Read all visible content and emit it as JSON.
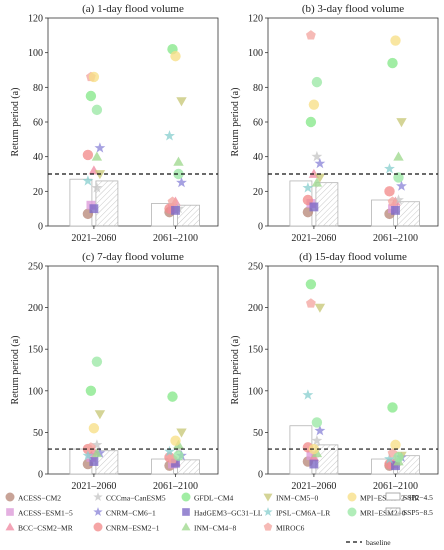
{
  "chart_data": [
    {
      "type": "scatter",
      "title": "(a) 1-day flood volume",
      "ylabel": "Return period (a)",
      "ylim": [
        0,
        120
      ],
      "yticks": [
        0,
        20,
        40,
        60,
        80,
        100,
        120
      ],
      "categories": [
        "2021–2060",
        "2061–2100"
      ],
      "baseline": 30,
      "bars": {
        "SSP2-4.5": [
          27,
          13
        ],
        "SSP5-8.5": [
          26,
          12
        ]
      },
      "series": [
        {
          "name": "ACESS−CM2",
          "values": [
            7,
            8
          ]
        },
        {
          "name": "ACESS−ESM1−5",
          "values": [
            12,
            10
          ]
        },
        {
          "name": "BCC−CSM2−MR",
          "values": [
            32,
            14
          ]
        },
        {
          "name": "CCCma−CanESM5",
          "values": [
            22,
            10
          ]
        },
        {
          "name": "CNRM−CM6−1",
          "values": [
            45,
            25
          ]
        },
        {
          "name": "CNRM−ESM2−1",
          "values": [
            41,
            10
          ]
        },
        {
          "name": "GFDL−CM4",
          "values": [
            75,
            102
          ]
        },
        {
          "name": "HadGEM3−GC31−LL",
          "values": [
            10,
            9
          ]
        },
        {
          "name": "INM−CM4−8",
          "values": [
            40,
            37
          ]
        },
        {
          "name": "INM−CM5−0",
          "values": [
            30,
            72
          ]
        },
        {
          "name": "IPSL−CM6A−LR",
          "values": [
            26,
            52
          ]
        },
        {
          "name": "MIROC6",
          "values": [
            86,
            14
          ]
        },
        {
          "name": "MPI−ESM1−2−HR",
          "values": [
            86,
            98
          ]
        },
        {
          "name": "MRI−ESM2−0",
          "values": [
            67,
            30
          ]
        }
      ]
    },
    {
      "type": "scatter",
      "title": "(b) 3-day flood volume",
      "ylabel": "Return period (a)",
      "ylim": [
        0,
        120
      ],
      "yticks": [
        0,
        20,
        40,
        60,
        80,
        100,
        120
      ],
      "categories": [
        "2021–2060",
        "2061–2100"
      ],
      "baseline": 30,
      "bars": {
        "SSP2-4.5": [
          26,
          15
        ],
        "SSP5-8.5": [
          25,
          14
        ]
      },
      "series": [
        {
          "name": "ACESS−CM2",
          "values": [
            8,
            7
          ]
        },
        {
          "name": "ACESS−ESM1−5",
          "values": [
            13,
            10
          ]
        },
        {
          "name": "BCC−CSM2−MR",
          "values": [
            30,
            14
          ]
        },
        {
          "name": "CCCma−CanESM5",
          "values": [
            40,
            15
          ]
        },
        {
          "name": "CNRM−CM6−1",
          "values": [
            36,
            23
          ]
        },
        {
          "name": "CNRM−ESM2−1",
          "values": [
            15,
            20
          ]
        },
        {
          "name": "GFDL−CM4",
          "values": [
            60,
            94
          ]
        },
        {
          "name": "HadGEM3−GC31−LL",
          "values": [
            11,
            9
          ]
        },
        {
          "name": "INM−CM4−8",
          "values": [
            25,
            40
          ]
        },
        {
          "name": "INM−CM5−0",
          "values": [
            28,
            60
          ]
        },
        {
          "name": "IPSL−CM6A−LR",
          "values": [
            22,
            33
          ]
        },
        {
          "name": "MIROC6",
          "values": [
            110,
            14
          ]
        },
        {
          "name": "MPI−ESM1−2−HR",
          "values": [
            70,
            107
          ]
        },
        {
          "name": "MRI−ESM2−0",
          "values": [
            83,
            28
          ]
        }
      ]
    },
    {
      "type": "scatter",
      "title": "(c) 7-day flood volume",
      "ylabel": "Return period (a)",
      "ylim": [
        0,
        250
      ],
      "yticks": [
        0,
        50,
        100,
        150,
        200,
        250
      ],
      "categories": [
        "2021–2060",
        "2061–2100"
      ],
      "baseline": 30,
      "bars": {
        "SSP2-4.5": [
          30,
          18
        ],
        "SSP5-8.5": [
          28,
          17
        ]
      },
      "series": [
        {
          "name": "ACESS−CM2",
          "values": [
            12,
            10
          ]
        },
        {
          "name": "ACESS−ESM1−5",
          "values": [
            20,
            12
          ]
        },
        {
          "name": "BCC−CSM2−MR",
          "values": [
            27,
            14
          ]
        },
        {
          "name": "CCCma−CanESM5",
          "values": [
            35,
            30
          ]
        },
        {
          "name": "CNRM−CM6−1",
          "values": [
            25,
            22
          ]
        },
        {
          "name": "CNRM−ESM2−1",
          "values": [
            30,
            20
          ]
        },
        {
          "name": "GFDL−CM4",
          "values": [
            100,
            93
          ]
        },
        {
          "name": "HadGEM3−GC31−LL",
          "values": [
            15,
            13
          ]
        },
        {
          "name": "INM−CM4−8",
          "values": [
            25,
            35
          ]
        },
        {
          "name": "INM−CM5−0",
          "values": [
            72,
            50
          ]
        },
        {
          "name": "IPSL−CM6A−LR",
          "values": [
            22,
            27
          ]
        },
        {
          "name": "MIROC6",
          "values": [
            32,
            18
          ]
        },
        {
          "name": "MPI−ESM1−2−HR",
          "values": [
            55,
            40
          ]
        },
        {
          "name": "MRI−ESM2−0",
          "values": [
            135,
            22
          ]
        }
      ]
    },
    {
      "type": "scatter",
      "title": "(d) 15-day flood volume",
      "ylabel": "Return period (a)",
      "ylim": [
        0,
        250
      ],
      "yticks": [
        0,
        50,
        100,
        150,
        200,
        250
      ],
      "categories": [
        "2021–2060",
        "2061–2100"
      ],
      "baseline": 30,
      "bars": {
        "SSP2-4.5": [
          58,
          18
        ],
        "SSP5-8.5": [
          35,
          22
        ]
      },
      "series": [
        {
          "name": "ACESS−CM2",
          "values": [
            15,
            10
          ]
        },
        {
          "name": "ACESS−ESM1−5",
          "values": [
            22,
            12
          ]
        },
        {
          "name": "BCC−CSM2−MR",
          "values": [
            20,
            15
          ]
        },
        {
          "name": "CCCma−CanESM5",
          "values": [
            40,
            20
          ]
        },
        {
          "name": "CNRM−CM6−1",
          "values": [
            52,
            20
          ]
        },
        {
          "name": "CNRM−ESM2−1",
          "values": [
            32,
            12
          ]
        },
        {
          "name": "GFDL−CM4",
          "values": [
            228,
            80
          ]
        },
        {
          "name": "HadGEM3−GC31−LL",
          "values": [
            12,
            10
          ]
        },
        {
          "name": "INM−CM4−8",
          "values": [
            25,
            15
          ]
        },
        {
          "name": "INM−CM5−0",
          "values": [
            200,
            22
          ]
        },
        {
          "name": "IPSL−CM6A−LR",
          "values": [
            95,
            18
          ]
        },
        {
          "name": "MIROC6",
          "values": [
            205,
            25
          ]
        },
        {
          "name": "MPI−ESM1−2−HR",
          "values": [
            30,
            35
          ]
        },
        {
          "name": "MRI−ESM2−0",
          "values": [
            62,
            20
          ]
        }
      ]
    }
  ],
  "styles": [
    {
      "name": "ACESS−CM2",
      "shape": "circle",
      "color": "#b9897a"
    },
    {
      "name": "ACESS−ESM1−5",
      "shape": "square",
      "color": "#dc9ad8"
    },
    {
      "name": "BCC−CSM2−MR",
      "shape": "triangle-up",
      "color": "#f08aa3"
    },
    {
      "name": "CCCma−CanESM5",
      "shape": "star",
      "color": "#c7c7c7"
    },
    {
      "name": "CNRM−CM6−1",
      "shape": "star",
      "color": "#8d86d9"
    },
    {
      "name": "CNRM−ESM2−1",
      "shape": "circle",
      "color": "#f28c8c"
    },
    {
      "name": "GFDL−CM4",
      "shape": "circle",
      "color": "#86e88a"
    },
    {
      "name": "HadGEM3−GC31−LL",
      "shape": "square",
      "color": "#7c68c5"
    },
    {
      "name": "INM−CM4−8",
      "shape": "triangle-up",
      "color": "#9fd88e"
    },
    {
      "name": "INM−CM5−0",
      "shape": "triangle-down",
      "color": "#c8c878"
    },
    {
      "name": "IPSL−CM6A−LR",
      "shape": "star",
      "color": "#8ad0cf"
    },
    {
      "name": "MIROC6",
      "shape": "pentagon",
      "color": "#f4a7a2"
    },
    {
      "name": "MPI−ESM1−2−HR",
      "shape": "circle",
      "color": "#f7df86"
    },
    {
      "name": "MRI−ESM2−0",
      "shape": "circle",
      "color": "#9be8a5"
    }
  ],
  "legend": {
    "models": [
      "ACESS−CM2",
      "ACESS−ESM1−5",
      "BCC−CSM2−MR",
      "CCCma−CanESM5",
      "CNRM−CM6−1",
      "CNRM−ESM2−1",
      "GFDL−CM4",
      "HadGEM3−GC31−LL",
      "INM−CM4−8",
      "INM−CM5−0",
      "IPSL−CM6A−LR",
      "MIROC6",
      "MPI−ESM1−2−HR",
      "MRI−ESM2−0"
    ],
    "ssp245": "SSP2−4.5",
    "ssp585": "SSP5−8.5",
    "baseline": "baseline"
  }
}
